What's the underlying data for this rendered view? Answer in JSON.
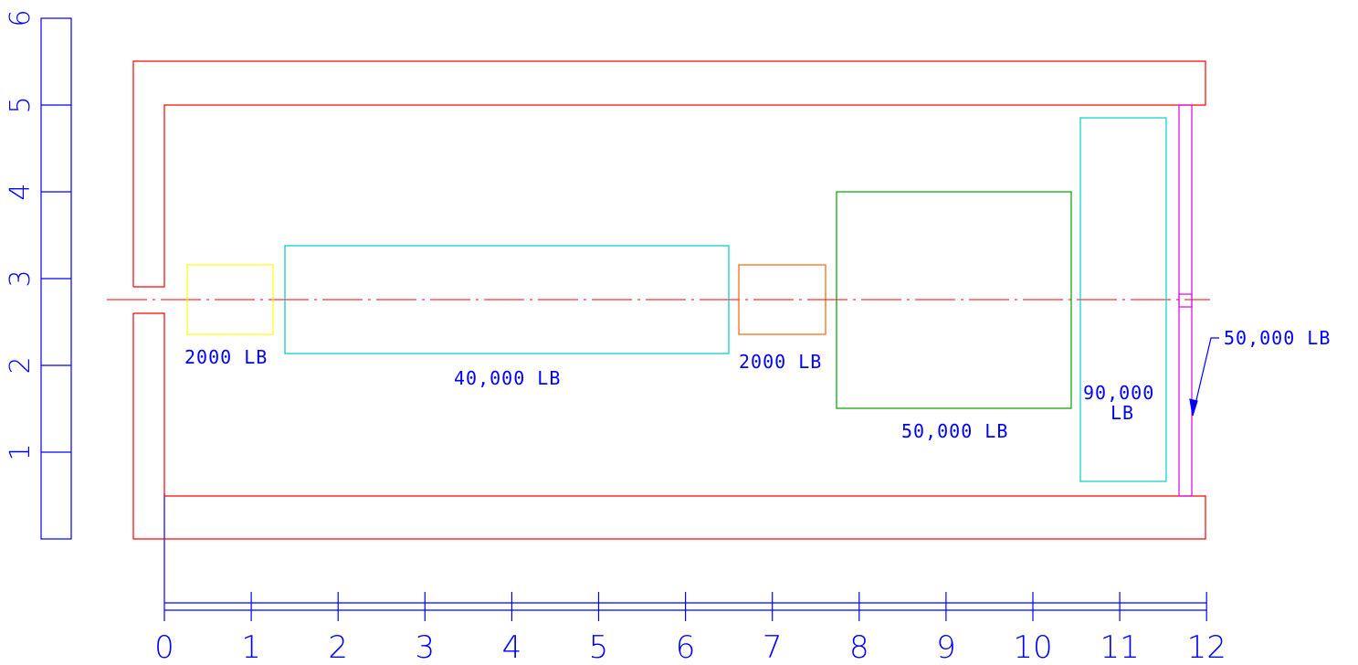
{
  "colors": {
    "ruler": "#0000ff",
    "hull": "#ff0000",
    "centerline": "#ff0000",
    "block_2000_left": "#ffff00",
    "block_40000": "#00c8c8",
    "block_2000_right": "#ff6000",
    "block_50000": "#00a000",
    "block_90000": "#00d0d0",
    "bulkhead": "#e000e0",
    "label": "#0000ff"
  },
  "horizontal_ruler": {
    "ticks": [
      "0",
      "1",
      "2",
      "3",
      "4",
      "5",
      "6",
      "7",
      "8",
      "9",
      "10",
      "11",
      "12"
    ]
  },
  "vertical_ruler": {
    "ticks": [
      "1",
      "2",
      "3",
      "4",
      "5",
      "6"
    ]
  },
  "loads": {
    "block_2000_left": "2000 LB",
    "block_40000": "40,000 LB",
    "block_2000_right": "2000 LB",
    "block_50000": "50,000 LB",
    "block_90000_line1": "90,000",
    "block_90000_line2": "LB",
    "bulkhead_callout": "50,000 LB"
  }
}
